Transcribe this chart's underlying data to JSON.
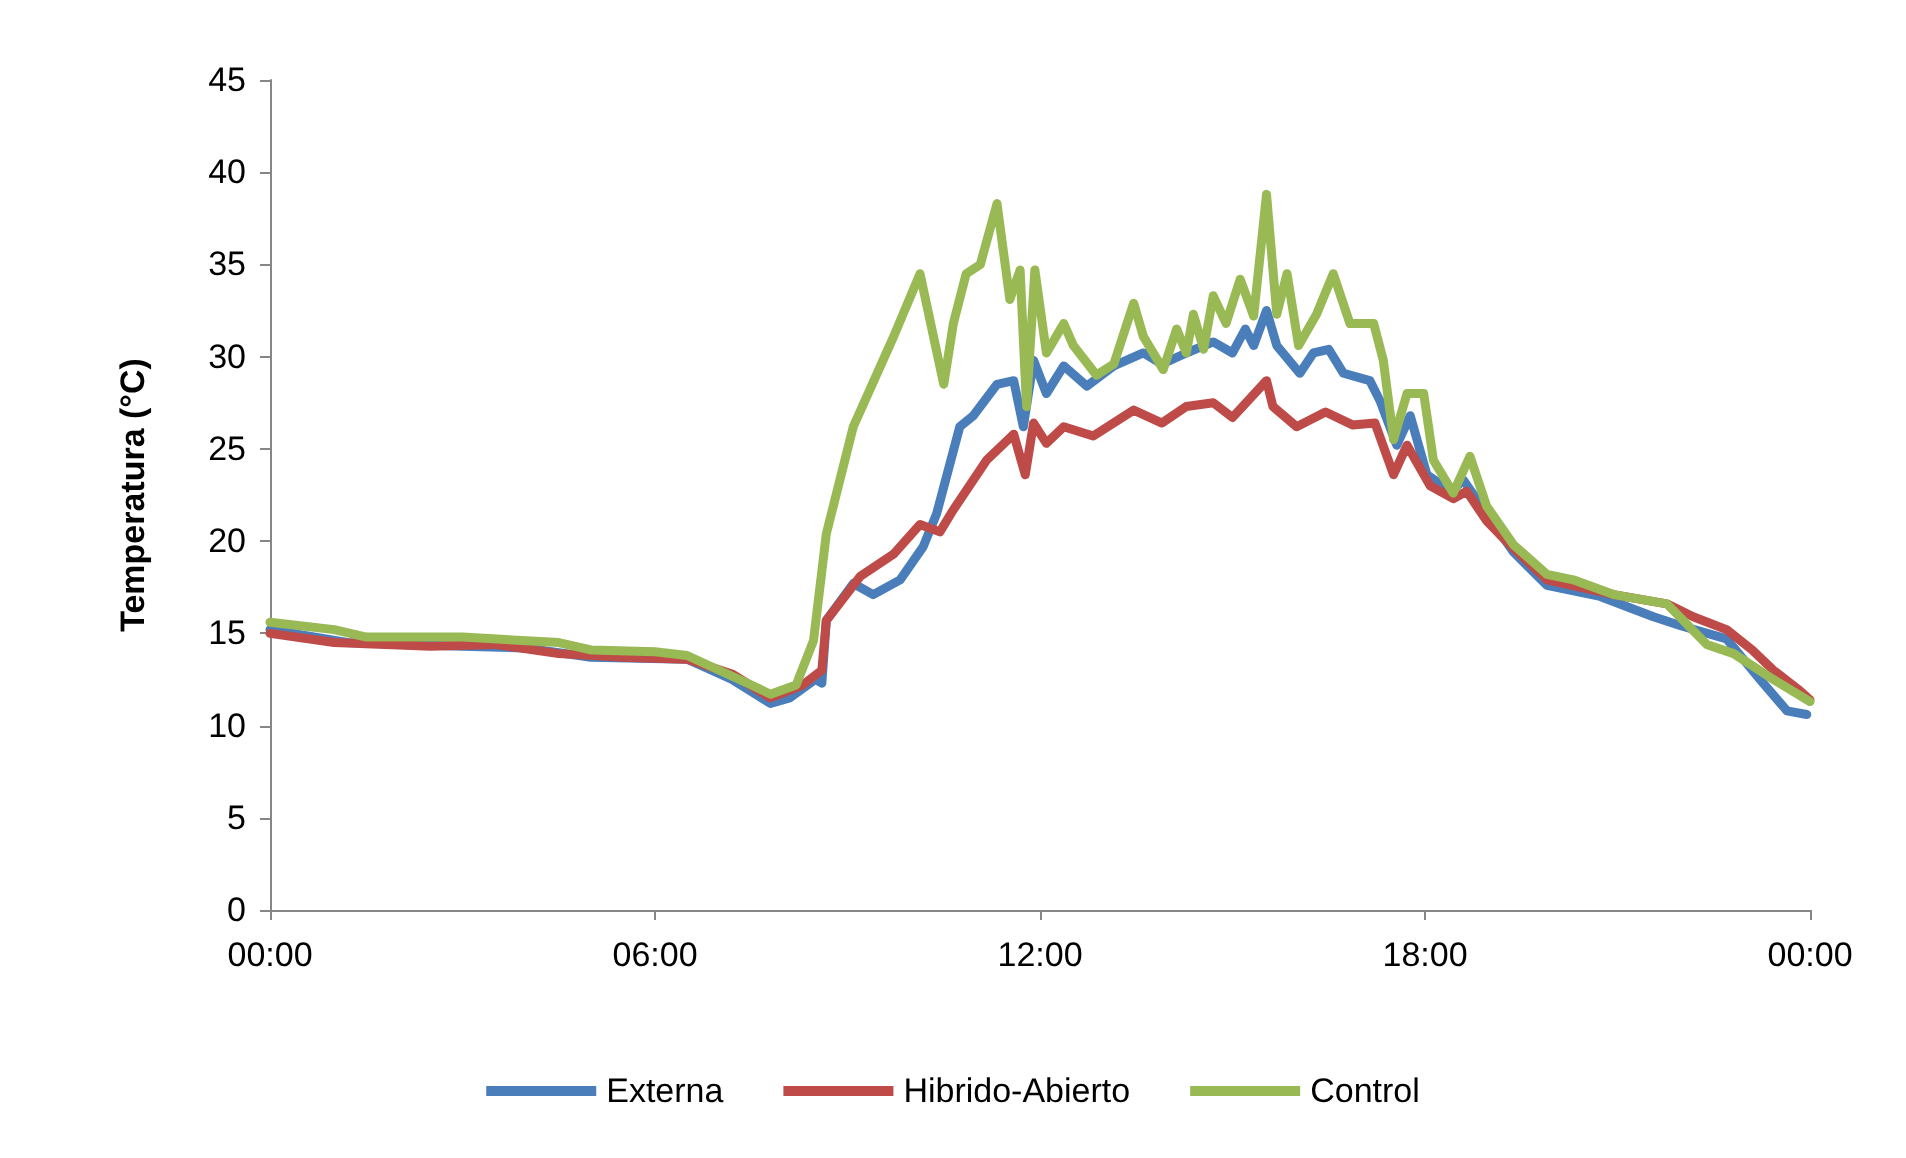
{
  "chart_data": {
    "type": "line",
    "ylabel": "Temperatura (°C)",
    "xlim": [
      0,
      24
    ],
    "xticks": [
      {
        "value": 0,
        "label": "00:00"
      },
      {
        "value": 6,
        "label": "06:00"
      },
      {
        "value": 12,
        "label": "12:00"
      },
      {
        "value": 18,
        "label": "18:00"
      },
      {
        "value": 24,
        "label": "00:00"
      }
    ],
    "ylim": [
      0,
      45
    ],
    "yticks": [
      0,
      5,
      10,
      15,
      20,
      25,
      30,
      35,
      40,
      45
    ],
    "grid": false,
    "legend": "bottom",
    "marker": "none",
    "line_style": "solid",
    "series": [
      {
        "name": "Externa",
        "color": "#4a7ebb",
        "x": [
          0,
          1.2,
          3,
          4,
          5,
          6.5,
          7.2,
          7.8,
          8.1,
          8.5,
          8.6,
          8.67,
          9.09,
          9.4,
          9.82,
          10.18,
          10.39,
          10.75,
          10.96,
          11.33,
          11.59,
          11.74,
          11.9,
          12.1,
          12.37,
          12.73,
          13.15,
          13.61,
          13.9,
          14.28,
          14.7,
          15.0,
          15.2,
          15.33,
          15.53,
          15.69,
          16.05,
          16.26,
          16.5,
          16.73,
          17.14,
          17.3,
          17.56,
          17.77,
          18.03,
          18.4,
          18.6,
          18.96,
          19.38,
          19.9,
          20.73,
          21.56,
          22.0,
          22.7,
          23.22,
          23.64,
          23.95
        ],
        "values": [
          15.2,
          14.5,
          14.3,
          14.2,
          13.7,
          13.6,
          12.5,
          11.2,
          11.5,
          12.5,
          12.3,
          15.7,
          17.7,
          17.1,
          17.9,
          19.7,
          21.5,
          26.2,
          26.8,
          28.5,
          28.7,
          26.2,
          29.8,
          28.0,
          29.5,
          28.4,
          29.5,
          30.2,
          29.6,
          30.2,
          30.8,
          30.2,
          31.5,
          30.6,
          32.5,
          30.6,
          29.1,
          30.2,
          30.4,
          29.1,
          28.7,
          27.6,
          25.2,
          26.8,
          23.6,
          22.7,
          23.3,
          21.5,
          19.4,
          17.6,
          17.0,
          15.9,
          15.4,
          14.7,
          12.5,
          10.8,
          10.6
        ]
      },
      {
        "name": "Hibrido-Abierto",
        "color": "#be4b48",
        "x": [
          0,
          1,
          2.5,
          3.5,
          4.5,
          5.5,
          6.5,
          7.2,
          7.8,
          8.3,
          8.6,
          8.67,
          9.2,
          9.72,
          10.13,
          10.44,
          10.65,
          11.17,
          11.59,
          11.77,
          11.9,
          12.1,
          12.37,
          12.83,
          13.46,
          13.9,
          14.28,
          14.7,
          15.0,
          15.53,
          15.63,
          16.0,
          16.45,
          16.87,
          17.22,
          17.51,
          17.72,
          18.08,
          18.44,
          18.65,
          18.96,
          19.38,
          19.9,
          20.94,
          21.77,
          22.18,
          22.7,
          23.1,
          23.43,
          23.84,
          24
        ],
        "values": [
          15.0,
          14.5,
          14.3,
          14.4,
          13.9,
          13.7,
          13.6,
          12.8,
          11.5,
          12.2,
          13.0,
          15.7,
          18.1,
          19.3,
          20.9,
          20.5,
          21.7,
          24.4,
          25.8,
          23.6,
          26.4,
          25.3,
          26.2,
          25.7,
          27.1,
          26.4,
          27.3,
          27.5,
          26.7,
          28.7,
          27.3,
          26.2,
          27.0,
          26.3,
          26.4,
          23.6,
          25.2,
          23.0,
          22.3,
          22.7,
          21.1,
          19.6,
          17.9,
          17.1,
          16.6,
          15.9,
          15.2,
          14.1,
          13.0,
          11.9,
          11.4
        ]
      },
      {
        "name": "Control",
        "color": "#98b954",
        "x": [
          0,
          1,
          1.5,
          3,
          4.5,
          5,
          6,
          6.5,
          7,
          7.5,
          7.8,
          8.2,
          8.47,
          8.67,
          9.09,
          9.72,
          10.13,
          10.5,
          10.65,
          10.85,
          11.07,
          11.33,
          11.53,
          11.69,
          11.79,
          11.92,
          12.1,
          12.37,
          12.52,
          12.88,
          13.15,
          13.46,
          13.61,
          13.92,
          14.13,
          14.28,
          14.39,
          14.55,
          14.7,
          14.9,
          15.12,
          15.33,
          15.53,
          15.69,
          15.85,
          16.03,
          16.31,
          16.57,
          16.83,
          17.2,
          17.35,
          17.51,
          17.72,
          17.98,
          18.13,
          18.44,
          18.7,
          18.96,
          19.38,
          19.9,
          20.31,
          20.94,
          21.77,
          22.39,
          22.81,
          23.43,
          24
        ],
        "values": [
          15.6,
          15.2,
          14.8,
          14.8,
          14.5,
          14.1,
          14.0,
          13.8,
          13.0,
          12.2,
          11.7,
          12.2,
          14.6,
          20.4,
          26.2,
          31.1,
          34.5,
          28.5,
          31.8,
          34.5,
          35.0,
          38.3,
          33.1,
          34.7,
          27.3,
          34.7,
          30.2,
          31.8,
          30.6,
          29.0,
          29.6,
          32.9,
          31.1,
          29.3,
          31.5,
          30.2,
          32.3,
          30.4,
          33.3,
          31.8,
          34.2,
          32.2,
          38.8,
          32.3,
          34.5,
          30.6,
          32.3,
          34.5,
          31.8,
          31.8,
          29.8,
          25.5,
          28.0,
          28.0,
          24.4,
          22.6,
          24.6,
          21.9,
          19.8,
          18.2,
          17.9,
          17.1,
          16.6,
          14.4,
          13.9,
          12.5,
          11.3
        ]
      }
    ]
  }
}
